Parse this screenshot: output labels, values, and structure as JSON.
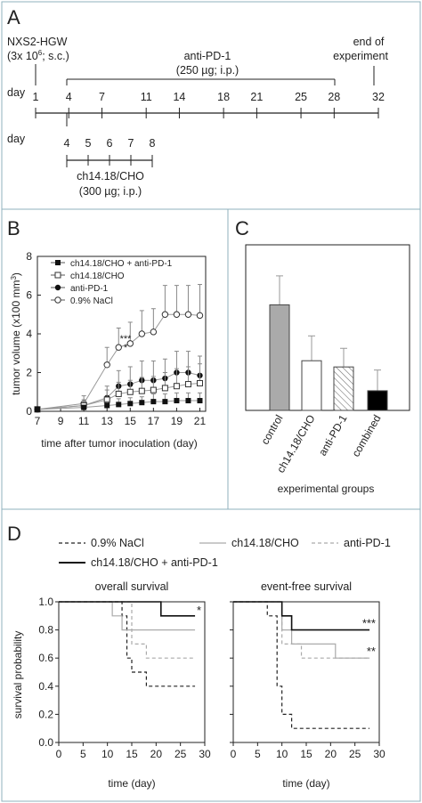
{
  "panel_a": {
    "label": "A",
    "nxs2_line1": "NXS2-HGW",
    "nxs2_line2": "(3x 10",
    "nxs2_sup": "6",
    "nxs2_line2_end": "; s.c.)",
    "antipd1_line1": "anti-PD-1",
    "antipd1_line2": "(250 µg; i.p.)",
    "end_line1": "end of",
    "end_line2": "experiment",
    "day_label": "day",
    "days_main": [
      "1",
      "4",
      "7",
      "11",
      "14",
      "18",
      "21",
      "25",
      "28",
      "32"
    ],
    "day_label2": "day",
    "days_ch": [
      "4",
      "5",
      "6",
      "7",
      "8"
    ],
    "ch_line1": "ch14.18/CHO",
    "ch_line2": "(300 µg; i.p.)"
  },
  "panel_b": {
    "label": "B",
    "ylabel": "tumor volume (x100 mm",
    "ylabel_sup": "3",
    "ylabel_end": ")",
    "xlabel": "time after tumor inoculation (day)",
    "sig1": "***",
    "sig2": "*"
  },
  "panel_c": {
    "label": "C",
    "xlabel": "experimental groups"
  },
  "panel_d": {
    "label": "D",
    "legend": [
      "0.9% NaCl",
      "ch14.18/CHO",
      "anti-PD-1",
      "ch14.18/CHO + anti-PD-1"
    ],
    "ylabel": "survival probability",
    "xlabel_left": "time (day)",
    "xlabel_right": "time (day)"
  },
  "chart_data": [
    {
      "type": "line",
      "panel": "B",
      "xlabel": "time after tumor inoculation (day)",
      "ylabel": "tumor volume (x100 mm3)",
      "xlim": [
        7,
        21.5
      ],
      "ylim": [
        0,
        8
      ],
      "xticks": [
        7,
        9,
        11,
        13,
        15,
        17,
        19,
        21
      ],
      "yticks": [
        0,
        2,
        4,
        6,
        8
      ],
      "legend_position": "top-left",
      "x": [
        7,
        11,
        13,
        14,
        15,
        16,
        17,
        18,
        19,
        20,
        21
      ],
      "series": [
        {
          "name": "ch14.18/CHO + anti-PD-1",
          "marker": "filled-square",
          "values": [
            0.1,
            0.2,
            0.3,
            0.35,
            0.4,
            0.45,
            0.5,
            0.5,
            0.55,
            0.55,
            0.55
          ],
          "errors": [
            0.1,
            0.1,
            0.2,
            0.3,
            0.3,
            0.3,
            0.4,
            0.4,
            0.4,
            0.4,
            0.4
          ]
        },
        {
          "name": "ch14.18/CHO",
          "marker": "open-square",
          "values": [
            0.1,
            0.3,
            0.6,
            0.9,
            1.0,
            1.05,
            1.1,
            1.2,
            1.3,
            1.4,
            1.45
          ],
          "errors": [
            0.1,
            0.2,
            0.5,
            0.6,
            0.6,
            0.7,
            0.7,
            0.8,
            0.9,
            0.9,
            1.0
          ]
        },
        {
          "name": "anti-PD-1",
          "marker": "filled-circle",
          "values": [
            0.1,
            0.3,
            0.7,
            1.3,
            1.4,
            1.6,
            1.6,
            1.7,
            2.0,
            2.0,
            1.85
          ],
          "errors": [
            0.1,
            0.3,
            0.6,
            0.8,
            0.9,
            1.0,
            1.0,
            1.0,
            1.1,
            1.1,
            1.0
          ]
        },
        {
          "name": "0.9% NaCl",
          "marker": "open-circle",
          "values": [
            0.1,
            0.4,
            2.4,
            3.3,
            3.5,
            4.0,
            4.1,
            5.0,
            5.0,
            5.0,
            4.95
          ],
          "errors": [
            0.1,
            0.4,
            0.9,
            1.0,
            1.1,
            1.2,
            1.2,
            1.5,
            1.5,
            1.5,
            1.6
          ]
        }
      ],
      "annotations": [
        {
          "x": 14,
          "text": "***"
        },
        {
          "x": 14,
          "text": "*"
        }
      ]
    },
    {
      "type": "bar",
      "panel": "C",
      "categories": [
        "control",
        "ch14.18/CHO",
        "anti-PD-1",
        "combined"
      ],
      "values": [
        5.1,
        2.4,
        2.1,
        0.95
      ],
      "errors": [
        1.4,
        1.2,
        0.9,
        1.0
      ],
      "fills": [
        "#aaaaaa",
        "#ffffff",
        "hatched",
        "#000000"
      ],
      "xlabel": "experimental groups",
      "ylim": [
        0,
        8
      ]
    },
    {
      "type": "line",
      "panel": "D-left",
      "title": "overall survival",
      "xlabel": "time (day)",
      "ylabel": "survival probability",
      "xlim": [
        0,
        30
      ],
      "ylim": [
        0,
        1.0
      ],
      "xticks": [
        0,
        5,
        10,
        15,
        20,
        25,
        30
      ],
      "yticks": [
        0.0,
        0.2,
        0.4,
        0.6,
        0.8,
        1.0
      ],
      "series": [
        {
          "name": "0.9% NaCl",
          "style": "dashed-dark",
          "steps": [
            [
              0,
              1.0
            ],
            [
              13,
              0.9
            ],
            [
              14,
              0.6
            ],
            [
              15,
              0.5
            ],
            [
              18,
              0.4
            ],
            [
              28,
              0.4
            ]
          ]
        },
        {
          "name": "ch14.18/CHO",
          "style": "solid-light",
          "steps": [
            [
              0,
              1.0
            ],
            [
              11,
              0.9
            ],
            [
              13,
              0.8
            ],
            [
              28,
              0.8
            ]
          ]
        },
        {
          "name": "anti-PD-1",
          "style": "dashed-light",
          "steps": [
            [
              0,
              1.0
            ],
            [
              15,
              0.7
            ],
            [
              18,
              0.6
            ],
            [
              28,
              0.6
            ]
          ]
        },
        {
          "name": "ch14.18/CHO + anti-PD-1",
          "style": "solid-dark",
          "steps": [
            [
              0,
              1.0
            ],
            [
              21,
              0.9
            ],
            [
              28,
              0.9
            ]
          ]
        }
      ],
      "annotations": [
        {
          "series": "ch14.18/CHO + anti-PD-1",
          "text": "*"
        }
      ]
    },
    {
      "type": "line",
      "panel": "D-right",
      "title": "event-free survival",
      "xlabel": "time (day)",
      "xlim": [
        0,
        30
      ],
      "ylim": [
        0,
        1.0
      ],
      "xticks": [
        0,
        5,
        10,
        15,
        20,
        25,
        30
      ],
      "yticks": [
        0.0,
        0.2,
        0.4,
        0.6,
        0.8,
        1.0
      ],
      "series": [
        {
          "name": "0.9% NaCl",
          "style": "dashed-dark",
          "steps": [
            [
              0,
              1.0
            ],
            [
              7,
              0.9
            ],
            [
              9,
              0.4
            ],
            [
              10,
              0.2
            ],
            [
              12,
              0.1
            ],
            [
              28,
              0.1
            ]
          ]
        },
        {
          "name": "ch14.18/CHO",
          "style": "solid-light",
          "steps": [
            [
              0,
              1.0
            ],
            [
              10,
              0.8
            ],
            [
              12,
              0.7
            ],
            [
              21,
              0.6
            ],
            [
              28,
              0.6
            ]
          ]
        },
        {
          "name": "anti-PD-1",
          "style": "dashed-light",
          "steps": [
            [
              0,
              1.0
            ],
            [
              10,
              0.7
            ],
            [
              14,
              0.6
            ],
            [
              28,
              0.6
            ]
          ]
        },
        {
          "name": "ch14.18/CHO + anti-PD-1",
          "style": "solid-dark",
          "steps": [
            [
              0,
              1.0
            ],
            [
              10,
              0.9
            ],
            [
              12,
              0.8
            ],
            [
              28,
              0.8
            ]
          ]
        }
      ],
      "annotations": [
        {
          "series": "ch14.18/CHO + anti-PD-1",
          "text": "***"
        },
        {
          "series": "anti-PD-1",
          "text": "**"
        }
      ]
    }
  ]
}
